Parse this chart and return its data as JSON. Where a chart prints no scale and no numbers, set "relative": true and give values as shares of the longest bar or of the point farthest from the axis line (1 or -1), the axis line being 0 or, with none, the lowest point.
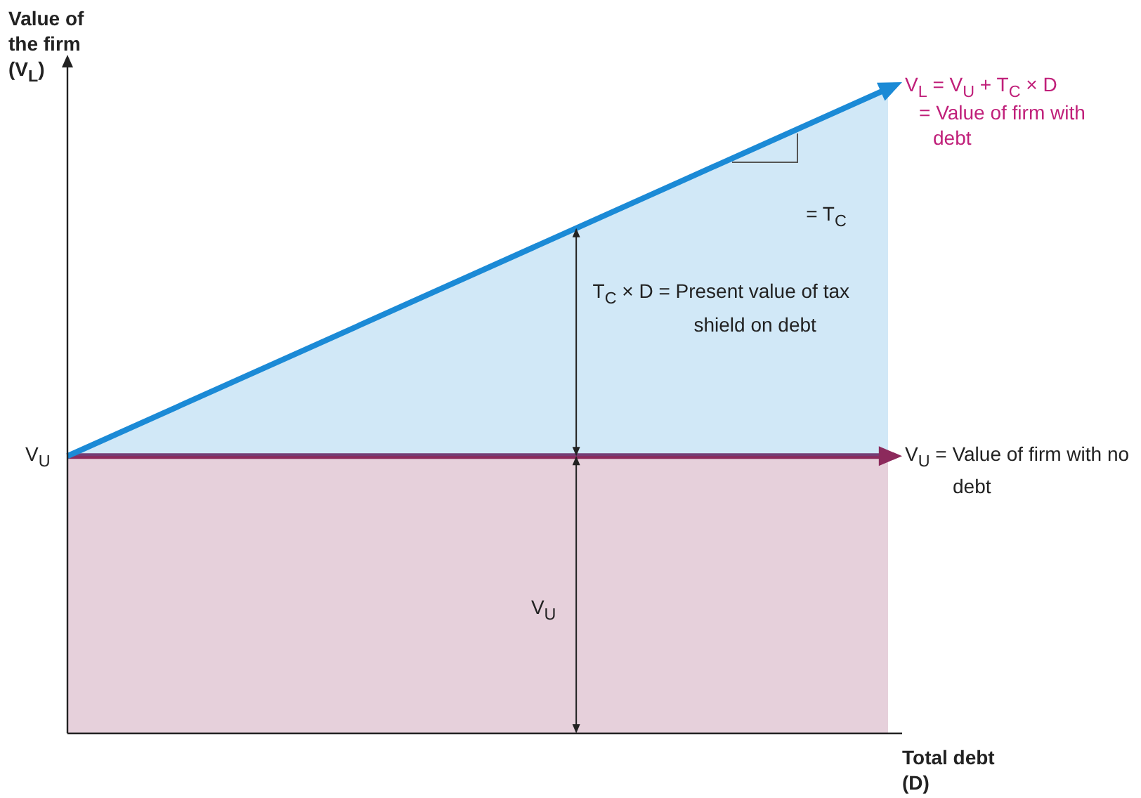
{
  "chart_data": {
    "type": "area",
    "relative": true,
    "xlabel": "Total debt (D)",
    "ylabel": "Value of the firm (V$_{L}$)",
    "categories": [
      null,
      null
    ],
    "series": [
      {
        "color": "#1b8ad6",
        "values": [
          0.43,
          1
        ]
      },
      {
        "color": "#8c2a5c",
        "values": [
          0.43,
          0.43
        ]
      }
    ],
    "annotations": [
      "V$_{L}$ = V$_{U}$ + T$_{C}$ × D",
      "= Value of firm with debt",
      "= T$_{C}$",
      "T$_{C}$ × D = Present value of tax shield on debt",
      "V$_{U}$ = Value of firm with no debt",
      "V$_{U}$",
      "V$_{U}$"
    ]
  }
}
